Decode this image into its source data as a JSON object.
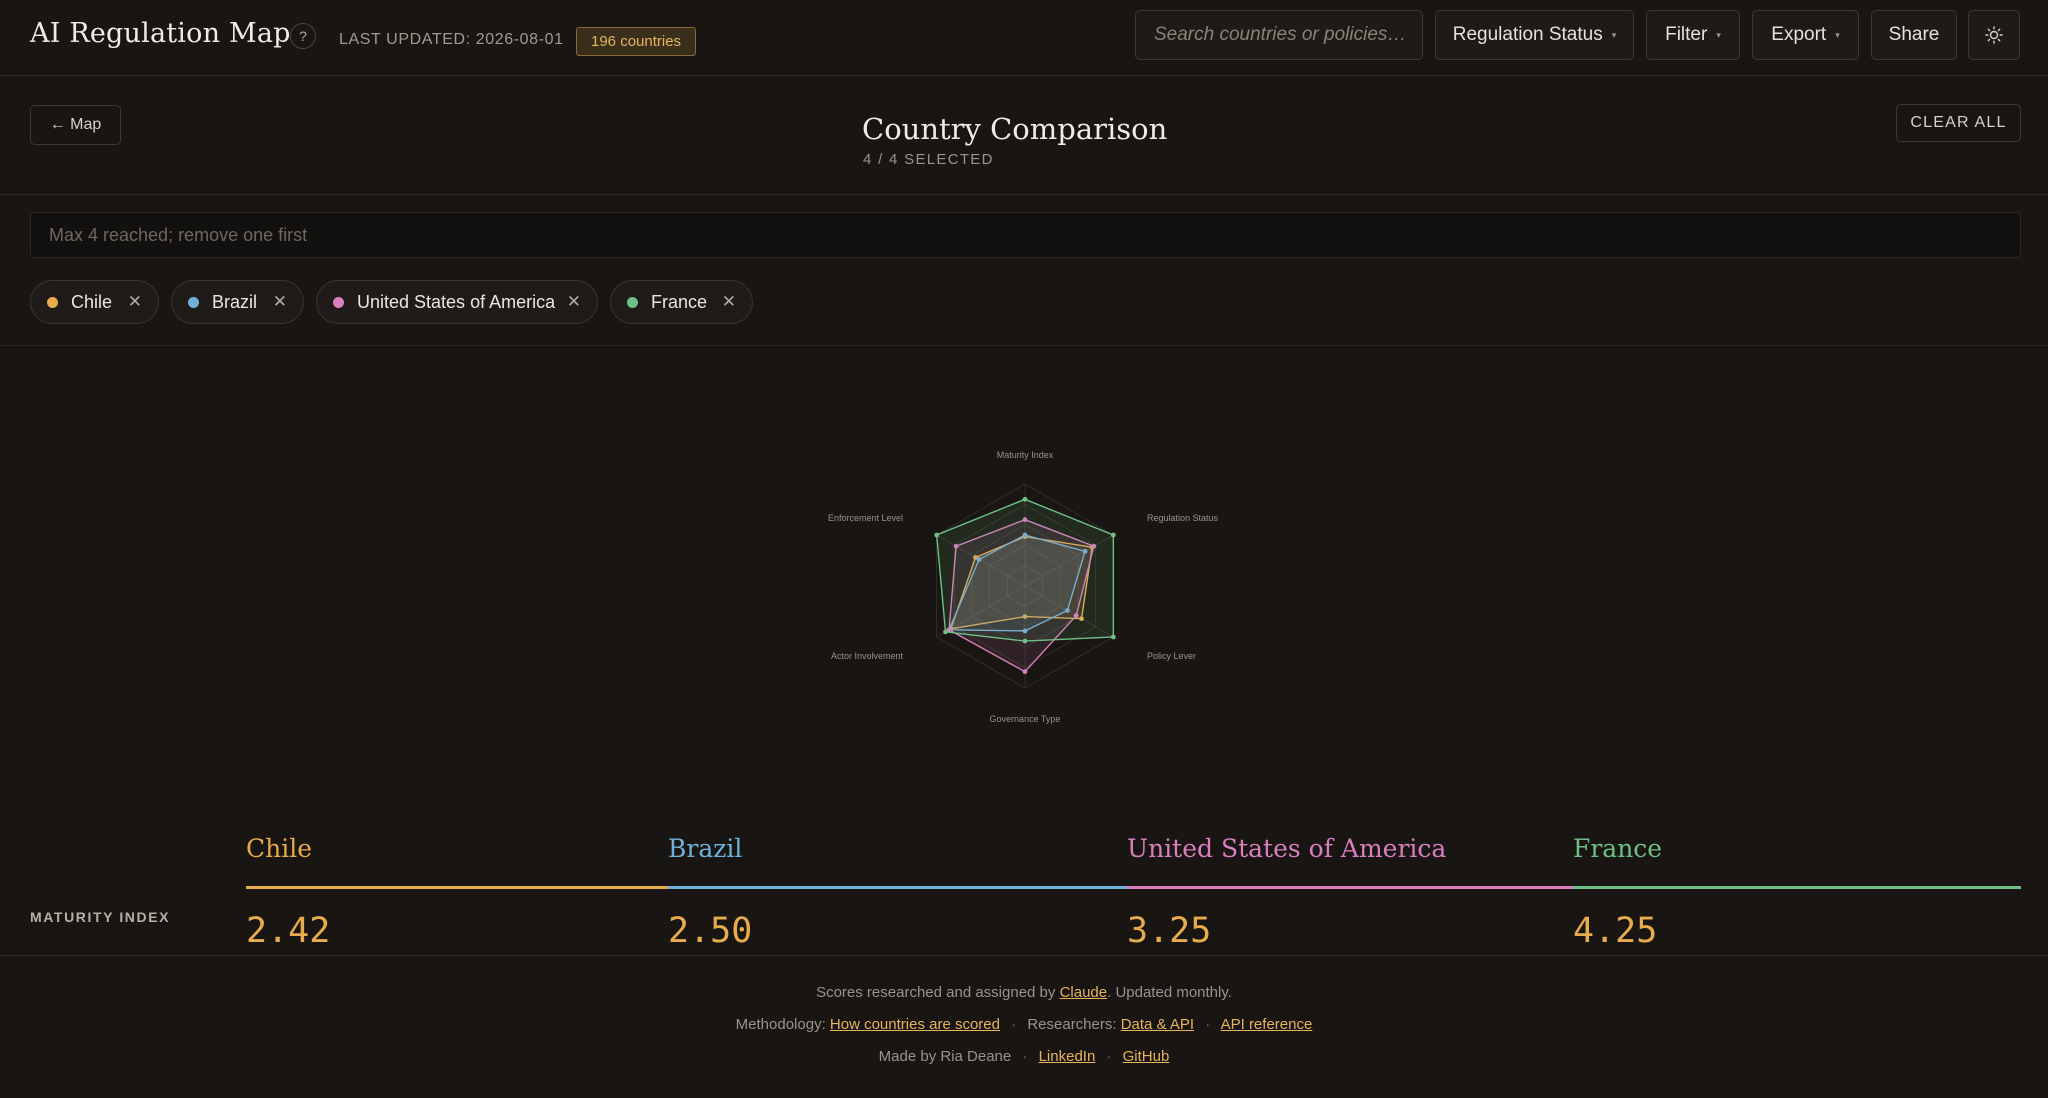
{
  "header": {
    "title": "AI Regulation Map",
    "help": "?",
    "last_updated": "LAST UPDATED: 2026-08-01",
    "countries_badge": "196 countries",
    "search_placeholder": "Search countries or policies…",
    "regulation_status": "Regulation Status",
    "filter": "Filter",
    "export": "Export",
    "share": "Share",
    "theme_icon": "sun-icon"
  },
  "subheader": {
    "back": "← Map",
    "title": "Country Comparison",
    "selected": "4 / 4 SELECTED",
    "clear_all": "CLEAR ALL",
    "add_placeholder": "Max 4 reached; remove one first"
  },
  "colors": {
    "chile": "#e8ac4c",
    "brazil": "#6fb2d9",
    "usa": "#d97fbf",
    "france": "#6fbf86",
    "accent": "#e7b45e"
  },
  "chips": [
    {
      "name": "Chile",
      "remove": "✕"
    },
    {
      "name": "Brazil",
      "remove": "✕"
    },
    {
      "name": "United States of America",
      "remove": "✕"
    },
    {
      "name": "France",
      "remove": "✕"
    }
  ],
  "radar": {
    "axes": [
      "Maturity Index",
      "Regulation Status",
      "Policy Lever",
      "Governance Type",
      "Actor Involvement",
      "Enforcement Level"
    ],
    "max": 5,
    "series": [
      {
        "name": "Chile",
        "values": [
          2.42,
          3.8,
          3.2,
          1.5,
          4.2,
          2.8
        ]
      },
      {
        "name": "Brazil",
        "values": [
          2.5,
          3.4,
          2.4,
          2.2,
          4.3,
          2.6
        ]
      },
      {
        "name": "United States of America",
        "values": [
          3.25,
          3.9,
          2.9,
          4.2,
          4.3,
          3.9
        ]
      },
      {
        "name": "France",
        "values": [
          4.25,
          5.0,
          5.0,
          2.7,
          4.5,
          5.0
        ]
      }
    ]
  },
  "comparison": {
    "columns": [
      "Chile",
      "Brazil",
      "United States of America",
      "France"
    ],
    "rows": [
      {
        "label": "MATURITY INDEX",
        "values": [
          "2.42",
          "2.50",
          "3.25",
          "4.25"
        ]
      }
    ]
  },
  "footer": {
    "line1_pre": "Scores researched and assigned by ",
    "line1_link": "Claude",
    "line1_post": ". Updated monthly.",
    "methodology_label": "Methodology: ",
    "methodology_link": "How countries are scored",
    "researchers_label": "Researchers: ",
    "data_api": "Data & API",
    "api_reference": "API reference",
    "made_by": "Made by Ria Deane",
    "linkedin": "LinkedIn",
    "github": "GitHub",
    "dot": "·"
  }
}
